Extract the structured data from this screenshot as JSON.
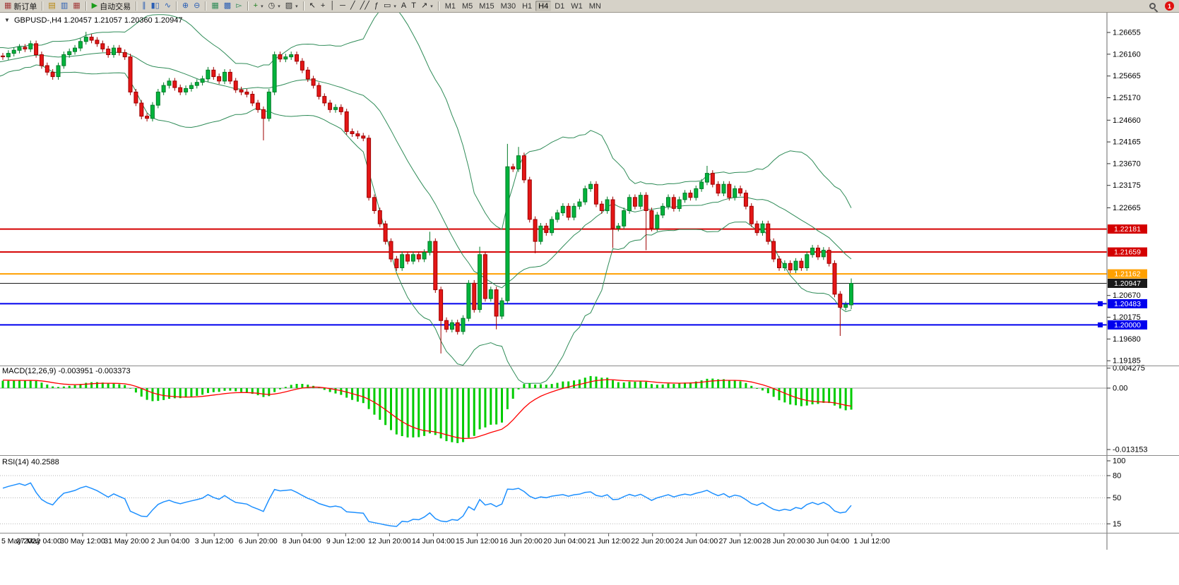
{
  "toolbar": {
    "new_order_label": "新订单",
    "new_order_icon": "▦",
    "auto_trading_label": "自动交易",
    "auto_trading_icon": "▶",
    "dropdown_glyph": "▾",
    "notification_count": "1",
    "timeframes": [
      "M1",
      "M5",
      "M15",
      "M30",
      "H1",
      "H4",
      "D1",
      "W1",
      "MN"
    ],
    "active_timeframe": "H4",
    "icon_groups": [
      {
        "name": "panels",
        "items": [
          {
            "name": "market-watch-icon",
            "glyph": "▤",
            "color": "#b8860b"
          },
          {
            "name": "navigator-icon",
            "glyph": "▥",
            "color": "#2b5fb4"
          },
          {
            "name": "terminal-icon",
            "glyph": "▦",
            "color": "#a33c3c"
          }
        ]
      },
      {
        "name": "chart-type",
        "items": [
          {
            "name": "bar-chart-icon",
            "glyph": "∥",
            "color": "#2b5fb4"
          },
          {
            "name": "candlestick-icon",
            "glyph": "▮▯",
            "color": "#2b5fb4"
          },
          {
            "name": "line-chart-icon",
            "glyph": "∿",
            "color": "#2b5fb4"
          }
        ]
      },
      {
        "name": "zoom",
        "items": [
          {
            "name": "zoom-in-icon",
            "glyph": "⊕",
            "color": "#2b5fb4"
          },
          {
            "name": "zoom-out-icon",
            "glyph": "⊖",
            "color": "#2b5fb4"
          }
        ]
      },
      {
        "name": "windows",
        "items": [
          {
            "name": "tile-windows-icon",
            "glyph": "▦",
            "color": "#2e8b57"
          },
          {
            "name": "cascade-windows-icon",
            "glyph": "▩",
            "color": "#2b5fb4"
          },
          {
            "name": "chart-shift-icon",
            "glyph": "▻",
            "color": "#2e8b57"
          }
        ]
      },
      {
        "name": "tools",
        "items": [
          {
            "name": "indicators-icon",
            "glyph": "+",
            "color": "#1a7d1a",
            "dropdown": true
          },
          {
            "name": "periods-icon",
            "glyph": "◷",
            "color": "#333",
            "dropdown": true
          },
          {
            "name": "templates-icon",
            "glyph": "▨",
            "color": "#333",
            "dropdown": true
          }
        ]
      },
      {
        "name": "drawing",
        "items": [
          {
            "name": "cursor-icon",
            "glyph": "↖",
            "color": "#222"
          },
          {
            "name": "crosshair-icon",
            "glyph": "+",
            "color": "#222"
          },
          {
            "name": "vertical-line-icon",
            "glyph": "│",
            "color": "#222"
          },
          {
            "name": "horizontal-line-icon",
            "glyph": "─",
            "color": "#222"
          },
          {
            "name": "trendline-icon",
            "glyph": "╱",
            "color": "#222"
          },
          {
            "name": "channel-icon",
            "glyph": "╱╱",
            "color": "#222"
          },
          {
            "name": "fibonacci-icon",
            "glyph": "ƒ",
            "color": "#222"
          },
          {
            "name": "shapes-icon",
            "glyph": "▭",
            "color": "#222",
            "dropdown": true
          },
          {
            "name": "text-icon",
            "glyph": "A",
            "color": "#222"
          },
          {
            "name": "text-label-icon",
            "glyph": "T",
            "color": "#222"
          },
          {
            "name": "arrows-icon",
            "glyph": "↗",
            "color": "#222",
            "dropdown": true
          }
        ]
      }
    ]
  },
  "chart_data": {
    "type": "candlestick",
    "title_marker": "▼",
    "symbol_title": "GBPUSD-,H4 1.20457 1.21057 1.20360 1.20947",
    "ohlc_display": {
      "open": "1.20457",
      "high": "1.21057",
      "low": "1.20360",
      "close": "1.20947"
    },
    "ylim": [
      1.1908,
      1.271
    ],
    "colors": {
      "bull": "#00b43c",
      "bull_border": "#007a26",
      "bear": "#e41616",
      "bear_border": "#9e0000",
      "background": "#ffffff",
      "axis_text": "#000000",
      "separator": "#8a8a8a"
    },
    "price_axis_ticks": [
      "1.26655",
      "1.26160",
      "1.25665",
      "1.25170",
      "1.24660",
      "1.24165",
      "1.23670",
      "1.23175",
      "1.22665",
      "1.20670",
      "1.20175",
      "1.19680",
      "1.19185"
    ],
    "hlines": [
      {
        "price": 1.22181,
        "label": "1.22181",
        "color": "#d40000",
        "width": 2
      },
      {
        "price": 1.21659,
        "label": "1.21659",
        "color": "#d40000",
        "width": 2
      },
      {
        "price": 1.21162,
        "label": "1.21162",
        "color": "#ffa000",
        "width": 2
      },
      {
        "price": 1.20947,
        "label": "1.20947",
        "color": "#1a1a1a",
        "width": 1
      },
      {
        "price": 1.20483,
        "label": "1.20483",
        "color": "#0000ee",
        "width": 2,
        "marker": true
      },
      {
        "price": 1.2,
        "label": "1.20000",
        "color": "#0000ee",
        "width": 2,
        "marker": true
      }
    ],
    "bollinger": {
      "period": 20,
      "deviation": 2,
      "color": "#2e8b57"
    },
    "macd": {
      "label": "MACD(12,26,9) -0.003951 -0.003373",
      "fast": 12,
      "slow": 26,
      "signal": 9,
      "color": "#00cc00",
      "signal_color": "#ff0000",
      "axis_ticks": [
        "0.004275",
        "0.00",
        "-0.013153"
      ],
      "current_main": "-0.003951",
      "current_signal": "-0.003373"
    },
    "rsi": {
      "label": "RSI(14) 40.2588",
      "period": 14,
      "color": "#1e90ff",
      "current": "40.2588",
      "axis_ticks": [
        "100",
        "80",
        "50",
        "15"
      ],
      "levels": [
        80,
        50,
        15
      ]
    },
    "time_axis": [
      "5 May 2022",
      "27 May 04:00",
      "30 May 12:00",
      "31 May 20:00",
      "2 Jun 04:00",
      "3 Jun 12:00",
      "6 Jun 20:00",
      "8 Jun 04:00",
      "9 Jun 12:00",
      "12 Jun 20:00",
      "14 Jun 04:00",
      "15 Jun 12:00",
      "16 Jun 20:00",
      "20 Jun 04:00",
      "21 Jun 12:00",
      "22 Jun 20:00",
      "24 Jun 04:00",
      "27 Jun 12:00",
      "28 Jun 20:00",
      "30 Jun 04:00",
      "1 Jul 12:00"
    ],
    "candles": {
      "warmup": 26,
      "spacing": 7.85,
      "default_wick": 0.0007,
      "closes": [
        1.253,
        1.2542,
        1.2536,
        1.255,
        1.2561,
        1.2555,
        1.257,
        1.2562,
        1.2578,
        1.2585,
        1.2575,
        1.259,
        1.2584,
        1.2595,
        1.2605,
        1.2598,
        1.261,
        1.26,
        1.2612,
        1.2605,
        1.2618,
        1.261,
        1.2622,
        1.2615,
        1.2608,
        1.2612,
        1.261,
        1.2618,
        1.2625,
        1.2632,
        1.2628,
        1.264,
        1.2615,
        1.259,
        1.2575,
        1.2565,
        1.259,
        1.2615,
        1.2622,
        1.263,
        1.2645,
        1.2655,
        1.2648,
        1.264,
        1.2628,
        1.2615,
        1.263,
        1.262,
        1.261,
        1.253,
        1.2505,
        1.2475,
        1.247,
        1.25,
        1.253,
        1.2545,
        1.2555,
        1.254,
        1.253,
        1.2538,
        1.2545,
        1.2552,
        1.256,
        1.258,
        1.2565,
        1.2555,
        1.2575,
        1.2555,
        1.2535,
        1.253,
        1.2525,
        1.2505,
        1.249,
        1.247,
        1.253,
        1.2615,
        1.2605,
        1.261,
        1.2615,
        1.26,
        1.258,
        1.256,
        1.2545,
        1.252,
        1.2505,
        1.249,
        1.2495,
        1.2485,
        1.244,
        1.2435,
        1.243,
        1.2425,
        1.229,
        1.226,
        1.223,
        1.219,
        1.215,
        1.213,
        1.216,
        1.2145,
        1.216,
        1.215,
        1.2165,
        1.219,
        1.208,
        1.201,
        1.199,
        1.2005,
        1.1985,
        1.2015,
        1.2095,
        1.2035,
        1.216,
        1.206,
        1.208,
        1.202,
        1.2055,
        1.236,
        1.2355,
        1.2385,
        1.233,
        1.224,
        1.219,
        1.2225,
        1.221,
        1.224,
        1.2255,
        1.227,
        1.2245,
        1.227,
        1.228,
        1.231,
        1.232,
        1.2275,
        1.226,
        1.2285,
        1.222,
        1.2225,
        1.226,
        1.229,
        1.227,
        1.2295,
        1.226,
        1.222,
        1.225,
        1.227,
        1.229,
        1.2265,
        1.2285,
        1.23,
        1.229,
        1.231,
        1.2325,
        1.2345,
        1.232,
        1.23,
        1.232,
        1.229,
        1.231,
        1.23,
        1.227,
        1.223,
        1.221,
        1.223,
        1.219,
        1.215,
        1.213,
        1.214,
        1.2125,
        1.2145,
        1.213,
        1.216,
        1.2175,
        1.2155,
        1.217,
        1.214,
        1.207,
        1.204,
        1.2046,
        1.20947
      ],
      "wick_overrides": {
        "41": {
          "h": 1.2667
        },
        "73": {
          "l": 1.242
        },
        "103": {
          "h": 1.2212
        },
        "105": {
          "l": 1.1935
        },
        "112": {
          "h": 1.2178
        },
        "115": {
          "l": 1.199
        },
        "117": {
          "h": 1.2412
        },
        "119": {
          "h": 1.2405
        },
        "122": {
          "l": 1.2163
        },
        "136": {
          "l": 1.2175
        },
        "142": {
          "l": 1.217
        },
        "153": {
          "h": 1.2362
        },
        "177": {
          "l": 1.1975
        },
        "179": {
          "o": 1.20457,
          "h": 1.21057,
          "l": 1.2036
        }
      }
    }
  }
}
